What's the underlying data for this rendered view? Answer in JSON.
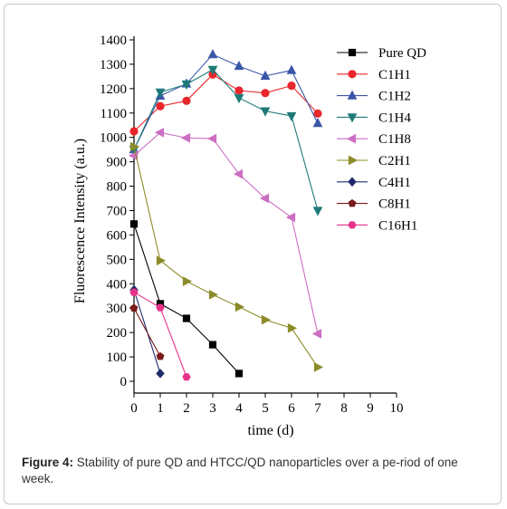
{
  "chart_data": {
    "type": "line",
    "xlabel": "time (d)",
    "ylabel": "Fluorescence Intensity (a.u.)",
    "xlim": [
      0,
      10
    ],
    "ylim": [
      0,
      1400
    ],
    "xticks": [
      "0",
      "1",
      "2",
      "3",
      "4",
      "5",
      "6",
      "7",
      "8",
      "9",
      "10"
    ],
    "yticks": [
      "0",
      "100",
      "200",
      "300",
      "400",
      "500",
      "600",
      "700",
      "800",
      "900",
      "1000",
      "1100",
      "1200",
      "1300",
      "1400"
    ],
    "legend_position": "top-right",
    "grid": false,
    "series": [
      {
        "name": "Pure QD",
        "color": "#000000",
        "marker": "square",
        "x": [
          0,
          1,
          2,
          3,
          4
        ],
        "y": [
          645,
          318,
          258,
          150,
          32
        ]
      },
      {
        "name": "C1H1",
        "color": "#e8262b",
        "marker": "circle",
        "x": [
          0,
          1,
          2,
          3,
          4,
          5,
          6,
          7
        ],
        "y": [
          1025,
          1128,
          1150,
          1258,
          1192,
          1182,
          1212,
          1098
        ]
      },
      {
        "name": "C1H2",
        "color": "#3a56a8",
        "marker": "triangle-up",
        "x": [
          0,
          1,
          2,
          3,
          4,
          5,
          6,
          7
        ],
        "y": [
          950,
          1170,
          1220,
          1340,
          1292,
          1252,
          1275,
          1058
        ]
      },
      {
        "name": "C1H4",
        "color": "#1e7a78",
        "marker": "triangle-down",
        "x": [
          0,
          1,
          2,
          3,
          4,
          5,
          6,
          7
        ],
        "y": [
          950,
          1185,
          1218,
          1278,
          1162,
          1108,
          1088,
          700
        ]
      },
      {
        "name": "C1H8",
        "color": "#cc6ec2",
        "marker": "triangle-left",
        "x": [
          0,
          1,
          2,
          3,
          4,
          5,
          6,
          7
        ],
        "y": [
          925,
          1020,
          998,
          995,
          850,
          750,
          672,
          195
        ]
      },
      {
        "name": "C2H1",
        "color": "#8c8c2a",
        "marker": "triangle-right",
        "x": [
          0,
          1,
          2,
          3,
          4,
          5,
          6,
          7
        ],
        "y": [
          962,
          495,
          410,
          355,
          305,
          252,
          218,
          58
        ]
      },
      {
        "name": "C4H1",
        "color": "#1f2a6b",
        "marker": "diamond",
        "x": [
          0,
          1
        ],
        "y": [
          375,
          32
        ]
      },
      {
        "name": "C8H1",
        "color": "#7a1a1a",
        "marker": "pentagon",
        "x": [
          0,
          1
        ],
        "y": [
          300,
          102
        ]
      },
      {
        "name": "C16H1",
        "color": "#e8328a",
        "marker": "hexagon",
        "x": [
          0,
          1,
          2
        ],
        "y": [
          365,
          302,
          18
        ]
      }
    ]
  },
  "caption": {
    "label": "Figure 4:",
    "text": " Stability of pure QD and HTCC/QD nanoparticles over a pe-riod of one week."
  }
}
